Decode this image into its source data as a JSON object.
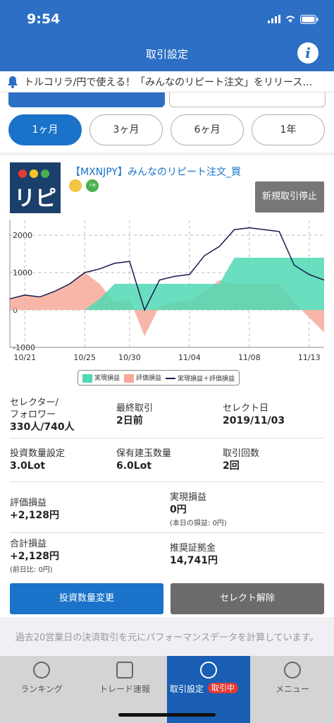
{
  "status_bar": {
    "time": "9:54"
  },
  "header": {
    "title": "取引設定",
    "info_icon": "i"
  },
  "notice": {
    "text": "トルコリラ/円で使える！「みんなのリピート注文」をリリース…"
  },
  "period_tabs": [
    {
      "label": "1ヶ月",
      "active": true
    },
    {
      "label": "3ヶ月",
      "active": false
    },
    {
      "label": "6ヶ月",
      "active": false
    },
    {
      "label": "1年",
      "active": false
    }
  ],
  "strategy": {
    "logo_text": "リピ",
    "title": "【MXNJPY】みんなのリピート注文_買",
    "badge_popular": "人気 TOP10",
    "stop_button": "新規取引停止"
  },
  "chart_data": {
    "type": "area",
    "x_ticks": [
      "10/21",
      "10/25",
      "10/30",
      "11/04",
      "11/08",
      "11/13"
    ],
    "y_ticks": [
      "2000",
      "1000",
      "0",
      "-1000"
    ],
    "ylim": [
      -1000,
      2400
    ],
    "grid": true,
    "x_start": "2019/10/19",
    "x": [
      "10/19",
      "10/21",
      "10/22",
      "10/23",
      "10/24",
      "10/25",
      "10/27",
      "10/28",
      "10/30",
      "10/31",
      "11/01",
      "11/02",
      "11/04",
      "11/05",
      "11/06",
      "11/07",
      "11/08",
      "11/09",
      "11/11",
      "11/12",
      "11/13",
      "11/14"
    ],
    "series": [
      {
        "name": "実現損益",
        "color": "#4fd9b4",
        "values": [
          0,
          0,
          0,
          0,
          0,
          0,
          300,
          700,
          700,
          700,
          700,
          700,
          700,
          700,
          700,
          1400,
          1400,
          1400,
          1400,
          1400,
          1400,
          1400
        ]
      },
      {
        "name": "評価損益",
        "color": "#f7a99a",
        "values": [
          300,
          400,
          350,
          500,
          700,
          1000,
          700,
          200,
          300,
          -700,
          100,
          200,
          250,
          500,
          800,
          700,
          700,
          700,
          700,
          200,
          -200,
          -600
        ]
      },
      {
        "name": "実現損益＋評価損益",
        "color": "#1a1a4e",
        "values": [
          300,
          400,
          350,
          500,
          700,
          1000,
          1100,
          1250,
          1300,
          0,
          800,
          900,
          950,
          1450,
          1700,
          2150,
          2200,
          2150,
          2100,
          1200,
          950,
          800
        ]
      }
    ],
    "legend_position": "bottom-center"
  },
  "stats": {
    "selector_label": "セレクター/\nフォロワー",
    "selector_value": "330人/740人",
    "last_trade_label": "最終取引",
    "last_trade_value": "2日前",
    "select_date_label": "セレクト日",
    "select_date_value": "2019/11/03",
    "invest_qty_label": "投資数量設定",
    "invest_qty_value": "3.0Lot",
    "position_qty_label": "保有建玉数量",
    "position_qty_value": "6.0Lot",
    "trade_count_label": "取引回数",
    "trade_count_value": "2回",
    "unrealized_label": "評価損益",
    "unrealized_value": "+2,128円",
    "realized_label": "実現損益",
    "realized_value": "0円",
    "realized_sub": "(本日の損益: 0円)",
    "total_label": "合計損益",
    "total_value": "+2,128円",
    "total_sub": "(前日比: 0円)",
    "margin_label": "推奨証拠金",
    "margin_value": "14,741円"
  },
  "buttons": {
    "change_qty": "投資数量変更",
    "deselect": "セレクト解除"
  },
  "footnote": "過去20営業日の決済取引を元にパフォーマンスデータを計算しています。",
  "bottom_nav": [
    {
      "label": "ランキング",
      "icon": "trophy-icon"
    },
    {
      "label": "トレード速報",
      "icon": "news-icon"
    },
    {
      "label": "取引設定",
      "icon": "user-icon",
      "badge": "取引中",
      "active": true
    },
    {
      "label": "メニュー",
      "icon": "menu-icon"
    }
  ]
}
